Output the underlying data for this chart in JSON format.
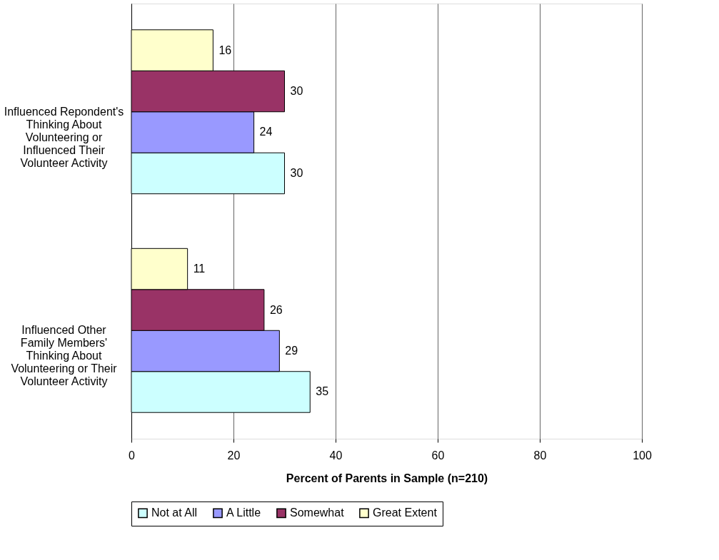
{
  "chart_data": {
    "type": "bar",
    "orientation": "horizontal",
    "xlabel": "Percent of Parents in Sample (n=210)",
    "categories": [
      "Influenced Repondent's Thinking About Volunteering or Influenced Their Volunteer Activity",
      "Influenced Other Family Members' Thinking About Volunteering or Their Volunteer Activity"
    ],
    "series": [
      {
        "name": "Not at All",
        "color": "#ccffff",
        "values": [
          30,
          35
        ]
      },
      {
        "name": "A Little",
        "color": "#9999ff",
        "values": [
          24,
          29
        ]
      },
      {
        "name": "Somewhat",
        "color": "#993366",
        "values": [
          30,
          26
        ]
      },
      {
        "name": "Great Extent",
        "color": "#ffffcc",
        "values": [
          16,
          11
        ]
      }
    ],
    "xlim": [
      0,
      100
    ],
    "xticks": [
      0,
      20,
      40,
      60,
      80,
      100
    ],
    "grid": "x",
    "legend": "bottom",
    "data_labels": true
  }
}
